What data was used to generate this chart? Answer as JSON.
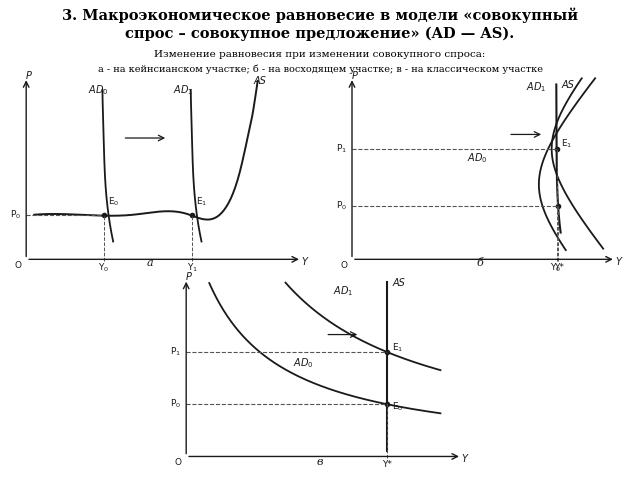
{
  "title_line1": "3. Макроэкономическое равновесие в модели «совокупный",
  "title_line2": "спрос – совокупное предложение» (AD — AS).",
  "subtitle": "Изменение равновесия при изменении совокупного спроса:",
  "subtitle2": "а - на кейнсианском участке; б - на восходящем участке; в - на классическом участке",
  "label_a": "а",
  "label_b": "б",
  "label_v": "в",
  "bg_color": "#ffffff",
  "curve_color": "#1a1a1a",
  "dashed_color": "#555555"
}
